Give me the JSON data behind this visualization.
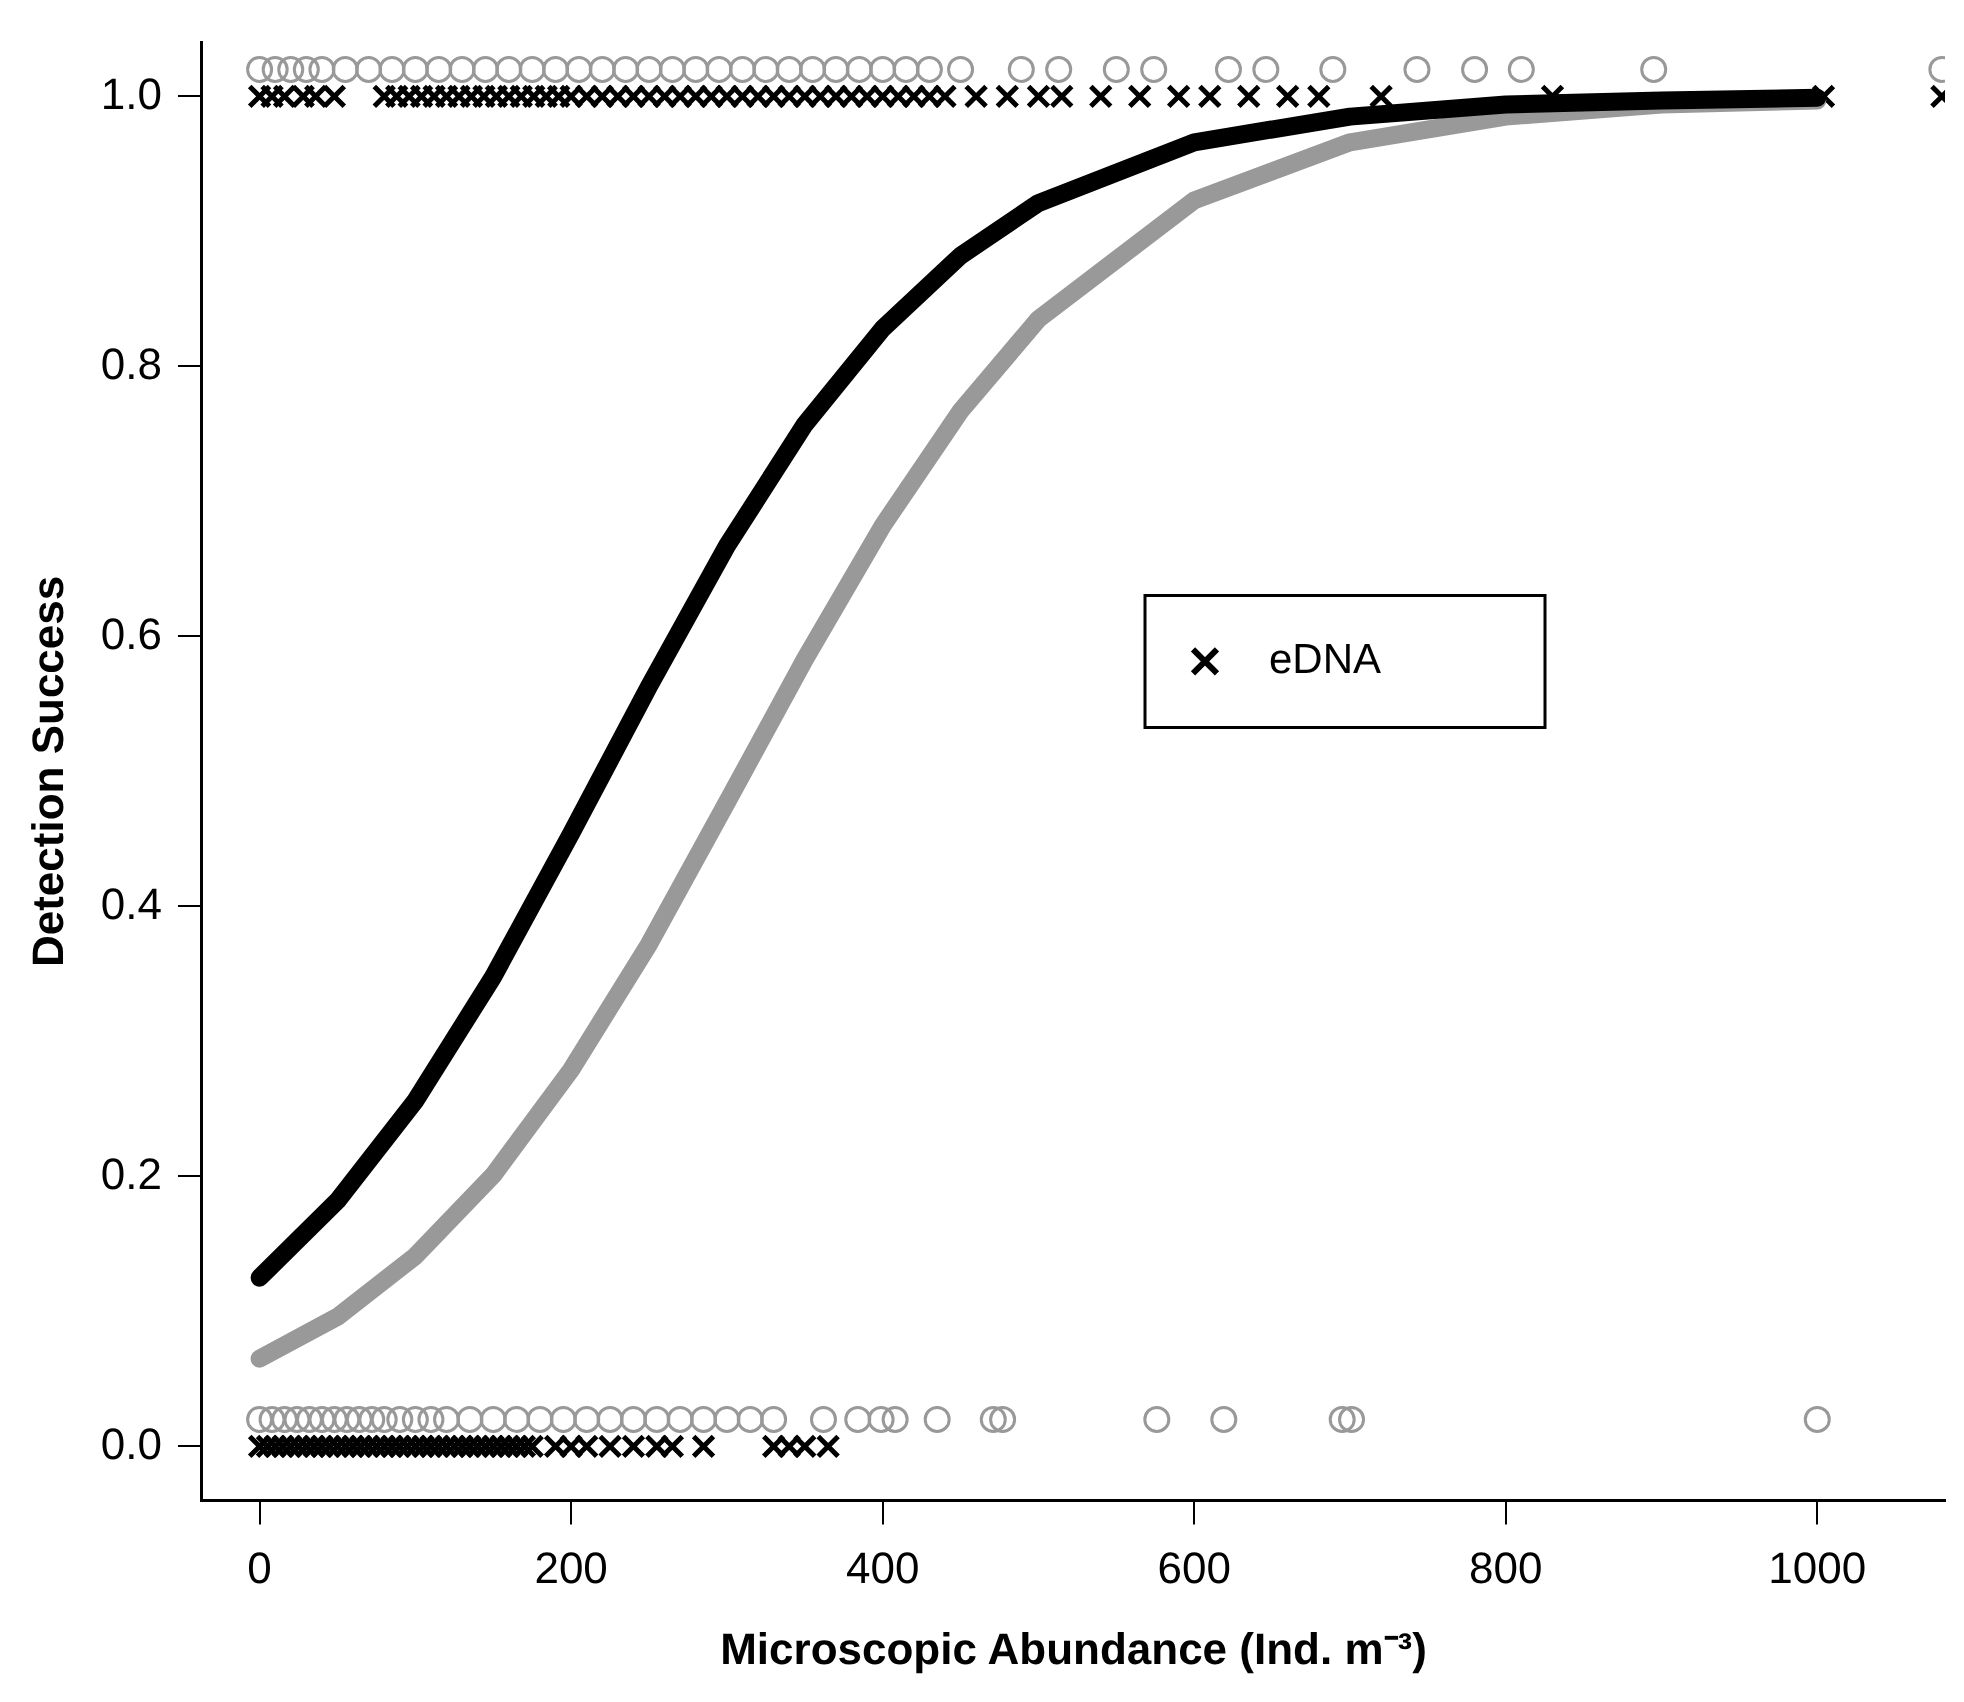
{
  "chart_data": {
    "type": "scatter",
    "xlabel": "Microscopic Abundance (Ind. m⁻³)",
    "ylabel": "Detection Success",
    "xlim": [
      -37,
      1082
    ],
    "ylim": [
      -0.04,
      1.04
    ],
    "xticks": [
      0,
      200,
      400,
      600,
      800,
      1000
    ],
    "yticks": [
      {
        "value": 0,
        "label": "0.0"
      },
      {
        "value": 0.2,
        "label": "0.2"
      },
      {
        "value": 0.4,
        "label": "0.4"
      },
      {
        "value": 0.6,
        "label": "0.6"
      },
      {
        "value": 0.8,
        "label": "0.8"
      },
      {
        "value": 1,
        "label": "1.0"
      }
    ],
    "grid": false,
    "legend": "right",
    "series": [
      {
        "name": "eDNA",
        "marker": "cross",
        "color": "#000000",
        "x": [
          0,
          8,
          16,
          28,
          36,
          48,
          80,
          88,
          96,
          104,
          112,
          120,
          128,
          136,
          144,
          152,
          160,
          168,
          176,
          184,
          192,
          200,
          210,
          220,
          230,
          240,
          250,
          260,
          270,
          280,
          290,
          300,
          310,
          320,
          330,
          340,
          350,
          360,
          370,
          380,
          390,
          400,
          410,
          420,
          430,
          440,
          460,
          480,
          500,
          515,
          540,
          565,
          590,
          610,
          635,
          660,
          680,
          720,
          830,
          1004,
          1080,
          0,
          5,
          10,
          15,
          20,
          25,
          30,
          35,
          40,
          45,
          50,
          55,
          60,
          65,
          70,
          75,
          80,
          85,
          90,
          95,
          100,
          105,
          110,
          115,
          120,
          125,
          130,
          135,
          140,
          145,
          150,
          155,
          160,
          165,
          170,
          175,
          190,
          200,
          210,
          225,
          240,
          255,
          265,
          285,
          330,
          340,
          350,
          365
        ],
        "values": [
          1,
          1,
          1,
          1,
          1,
          1,
          1,
          1,
          1,
          1,
          1,
          1,
          1,
          1,
          1,
          1,
          1,
          1,
          1,
          1,
          1,
          1,
          1,
          1,
          1,
          1,
          1,
          1,
          1,
          1,
          1,
          1,
          1,
          1,
          1,
          1,
          1,
          1,
          1,
          1,
          1,
          1,
          1,
          1,
          1,
          1,
          1,
          1,
          1,
          1,
          1,
          1,
          1,
          1,
          1,
          1,
          1,
          1,
          1,
          1,
          1,
          0,
          0,
          0,
          0,
          0,
          0,
          0,
          0,
          0,
          0,
          0,
          0,
          0,
          0,
          0,
          0,
          0,
          0,
          0,
          0,
          0,
          0,
          0,
          0,
          0,
          0,
          0,
          0,
          0,
          0,
          0,
          0,
          0,
          0,
          0,
          0,
          0,
          0,
          0,
          0,
          0,
          0,
          0,
          0,
          0,
          0,
          0,
          0
        ]
      },
      {
        "marker": "circle",
        "color": "#999999",
        "x": [
          0,
          10,
          20,
          30,
          40,
          55,
          70,
          85,
          100,
          115,
          130,
          145,
          160,
          175,
          190,
          205,
          220,
          235,
          250,
          265,
          280,
          295,
          310,
          325,
          340,
          355,
          370,
          385,
          400,
          415,
          430,
          450,
          489,
          513,
          550,
          574,
          622,
          646,
          689,
          743,
          780,
          810,
          895,
          1080,
          0,
          8,
          16,
          24,
          32,
          40,
          48,
          56,
          64,
          72,
          80,
          90,
          100,
          110,
          120,
          135,
          150,
          165,
          180,
          195,
          210,
          225,
          240,
          255,
          270,
          285,
          300,
          315,
          330,
          362,
          384,
          399,
          408,
          435,
          471,
          477,
          576,
          619,
          695,
          701,
          1000
        ],
        "values": [
          1.02,
          1.02,
          1.02,
          1.02,
          1.02,
          1.02,
          1.02,
          1.02,
          1.02,
          1.02,
          1.02,
          1.02,
          1.02,
          1.02,
          1.02,
          1.02,
          1.02,
          1.02,
          1.02,
          1.02,
          1.02,
          1.02,
          1.02,
          1.02,
          1.02,
          1.02,
          1.02,
          1.02,
          1.02,
          1.02,
          1.02,
          1.02,
          1.02,
          1.02,
          1.02,
          1.02,
          1.02,
          1.02,
          1.02,
          1.02,
          1.02,
          1.02,
          1.02,
          1.02,
          0.02,
          0.02,
          0.02,
          0.02,
          0.02,
          0.02,
          0.02,
          0.02,
          0.02,
          0.02,
          0.02,
          0.02,
          0.02,
          0.02,
          0.02,
          0.02,
          0.02,
          0.02,
          0.02,
          0.02,
          0.02,
          0.02,
          0.02,
          0.02,
          0.02,
          0.02,
          0.02,
          0.02,
          0.02,
          0.02,
          0.02,
          0.02,
          0.02,
          0.02,
          0.02,
          0.02,
          0.02,
          0.02,
          0.02,
          0.02,
          0.02
        ]
      },
      {
        "type": "line",
        "marker": "none",
        "color": "#000000",
        "x": [
          0,
          50,
          100,
          150,
          200,
          250,
          300,
          350,
          400,
          450,
          500,
          600,
          700,
          800,
          900,
          1000
        ],
        "values": [
          0.125,
          0.182,
          0.256,
          0.348,
          0.454,
          0.563,
          0.667,
          0.757,
          0.828,
          0.882,
          0.921,
          0.966,
          0.985,
          0.994,
          0.997,
          0.999
        ]
      },
      {
        "type": "line",
        "marker": "none",
        "color": "#999999",
        "x": [
          0,
          50,
          100,
          150,
          200,
          250,
          300,
          350,
          400,
          450,
          500,
          600,
          700,
          800,
          900,
          1000
        ],
        "values": [
          0.065,
          0.096,
          0.141,
          0.201,
          0.279,
          0.372,
          0.477,
          0.583,
          0.682,
          0.767,
          0.835,
          0.923,
          0.966,
          0.985,
          0.994,
          0.997
        ]
      }
    ]
  }
}
